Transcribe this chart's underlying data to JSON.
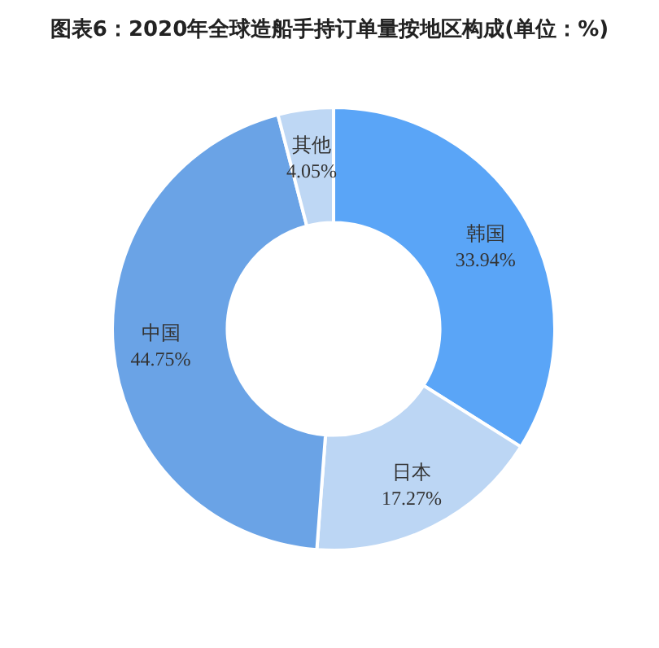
{
  "chart_data": {
    "type": "donut",
    "title": "图表6：2020年全球造船手持订单量按地区构成(单位：%)",
    "categories": [
      "韩国",
      "日本",
      "中国",
      "其他"
    ],
    "values": [
      33.94,
      17.27,
      44.75,
      4.05
    ],
    "colors": [
      "#5aa5f7",
      "#bcd6f4",
      "#6aa3e6",
      "#bed7f4"
    ],
    "value_labels": [
      "33.94%",
      "17.27%",
      "44.75%",
      "4.05%"
    ]
  }
}
